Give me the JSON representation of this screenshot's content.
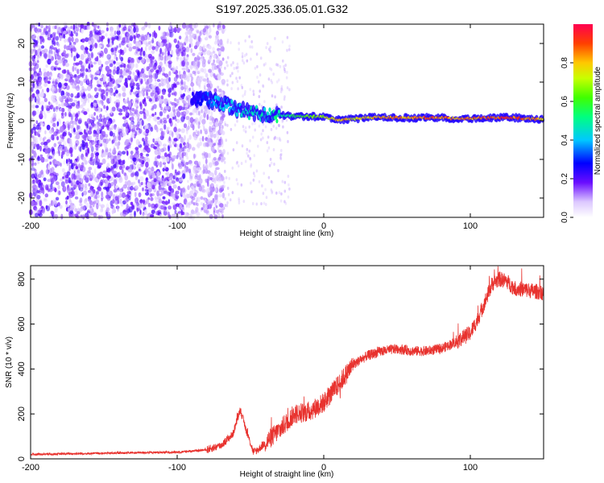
{
  "figure_title": "S197.2025.336.05.01.G32",
  "colors": {
    "snr_line": "#e8322e",
    "spectrogram_dot": "#8a2be2"
  },
  "chart_data": [
    {
      "type": "heatmap",
      "title": "S197.2025.336.05.01.G32",
      "xlabel": "Height of straight line (km)",
      "ylabel": "Frequency (Hz)",
      "xlim": [
        -200,
        150
      ],
      "ylim": [
        -25,
        25
      ],
      "xticks": [
        -200,
        -100,
        0,
        100
      ],
      "yticks": [
        -20,
        -10,
        0,
        10,
        20
      ],
      "colorbar": {
        "label": "Normalized spectral amplitude",
        "range": [
          0,
          1
        ],
        "ticks": [
          0.0,
          0.2,
          0.4,
          0.6,
          0.8
        ],
        "tick_labels": [
          "0.0",
          "0.2",
          "0.4",
          "0.6",
          "0.8"
        ]
      },
      "noise_region_km": [
        -200,
        -68
      ],
      "transition_region_km": [
        -90,
        -30
      ],
      "ridge": {
        "x": [
          -90,
          -80,
          -70,
          -60,
          -50,
          -40,
          -30,
          -20,
          -10,
          0,
          10,
          20,
          30,
          40,
          50,
          60,
          70,
          80,
          90,
          100,
          110,
          120,
          130,
          140,
          150
        ],
        "y": [
          6,
          5.5,
          4.5,
          3.2,
          2.2,
          1.6,
          1.3,
          1.2,
          1.1,
          1.0,
          0.2,
          0.5,
          0.8,
          0.9,
          0.8,
          0.7,
          0.8,
          0.8,
          0.5,
          0.6,
          0.7,
          0.8,
          0.8,
          0.5,
          0.4
        ],
        "amplitude": [
          0.25,
          0.35,
          0.45,
          0.45,
          0.5,
          0.5,
          0.55,
          0.6,
          0.7,
          0.75,
          0.9,
          0.8,
          0.85,
          0.9,
          0.9,
          0.9,
          0.95,
          0.95,
          0.9,
          0.9,
          0.95,
          0.95,
          0.95,
          0.9,
          0.85
        ]
      }
    },
    {
      "type": "line",
      "xlabel": "Height of straight line (km)",
      "ylabel": "SNR (10 * v/v)",
      "xlim": [
        -200,
        150
      ],
      "ylim": [
        0,
        860
      ],
      "xticks": [
        -200,
        -100,
        0,
        100
      ],
      "yticks": [
        0,
        200,
        400,
        600,
        800
      ],
      "series": [
        {
          "name": "SNR",
          "x": [
            -200,
            -150,
            -100,
            -80,
            -70,
            -62,
            -57,
            -53,
            -48,
            -45,
            -40,
            -30,
            -20,
            -10,
            0,
            10,
            20,
            30,
            40,
            50,
            60,
            70,
            80,
            90,
            100,
            105,
            110,
            115,
            120,
            125,
            130,
            140,
            150
          ],
          "y": [
            20,
            25,
            30,
            40,
            60,
            110,
            220,
            130,
            30,
            40,
            70,
            130,
            200,
            210,
            250,
            330,
            420,
            460,
            480,
            490,
            480,
            480,
            490,
            520,
            560,
            620,
            700,
            780,
            800,
            790,
            760,
            750,
            740
          ]
        }
      ]
    }
  ]
}
